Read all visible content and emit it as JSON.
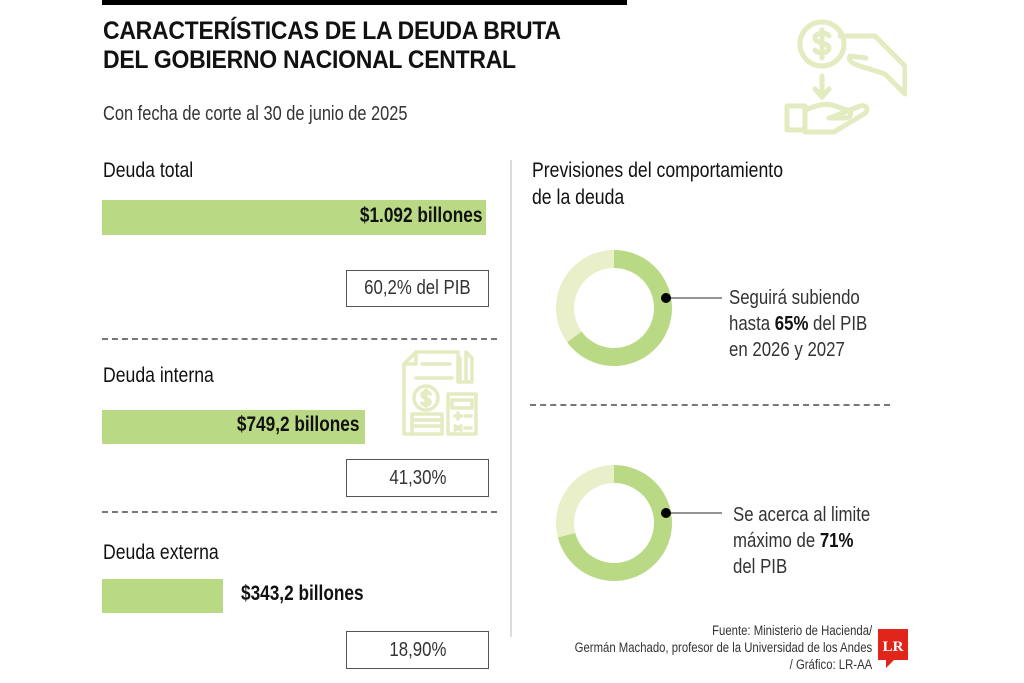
{
  "header": {
    "title_line1": "CARACTERÍSTICAS DE LA DEUDA BRUTA",
    "title_line2": "DEL GOBIERNO NACIONAL CENTRAL",
    "subtitle": "Con fecha de corte al 30 de junio de 2025"
  },
  "icons": {
    "top_right": "hand-coin-exchange-icon",
    "middle": "invoice-calculator-coins-icon",
    "logo": "LR"
  },
  "colors": {
    "bar": "#b9d985",
    "donut_filled": "#b9d985",
    "donut_remaining": "#e8efc9",
    "icon_tint": "#e3ebc0",
    "logo_red": "#e1251b"
  },
  "chart_data": [
    {
      "type": "bar",
      "title": "Deuda bruta del Gobierno Nacional Central",
      "orientation": "horizontal",
      "unit": "billones de pesos",
      "categories": [
        "Deuda total",
        "Deuda interna",
        "Deuda externa"
      ],
      "values": [
        1092,
        749.2,
        343.2
      ],
      "value_labels": [
        "$1.092 billones",
        "$749,2 billones",
        "$343,2 billones"
      ],
      "pib_share_labels": [
        "60,2% del PIB",
        "41,30%",
        "18,90%"
      ],
      "pib_share_values": [
        60.2,
        41.3,
        18.9
      ]
    },
    {
      "type": "pie",
      "title": "Previsiones del comportamiento de la deuda",
      "donuts": [
        {
          "value_percent": 65,
          "text_before": "Seguirá subiendo",
          "text_mid_pre": "hasta ",
          "text_bold": "65%",
          "text_mid_post": " del PIB",
          "text_after": "en 2026 y 2027"
        },
        {
          "value_percent": 71,
          "text_before": "Se acerca al limite",
          "text_mid_pre": "máximo de ",
          "text_bold": "71%",
          "text_mid_post": "",
          "text_after": "del PIB"
        }
      ]
    }
  ],
  "right_panel": {
    "title_line1": "Previsiones del comportamiento",
    "title_line2": "de la deuda"
  },
  "footer": {
    "source_line1": "Fuente: Ministerio de Hacienda/",
    "source_line2": "Germán Machado, profesor de la Universidad de los Andes",
    "source_line3": "/ Gráfico: LR-AA",
    "logo_text": "LR"
  }
}
